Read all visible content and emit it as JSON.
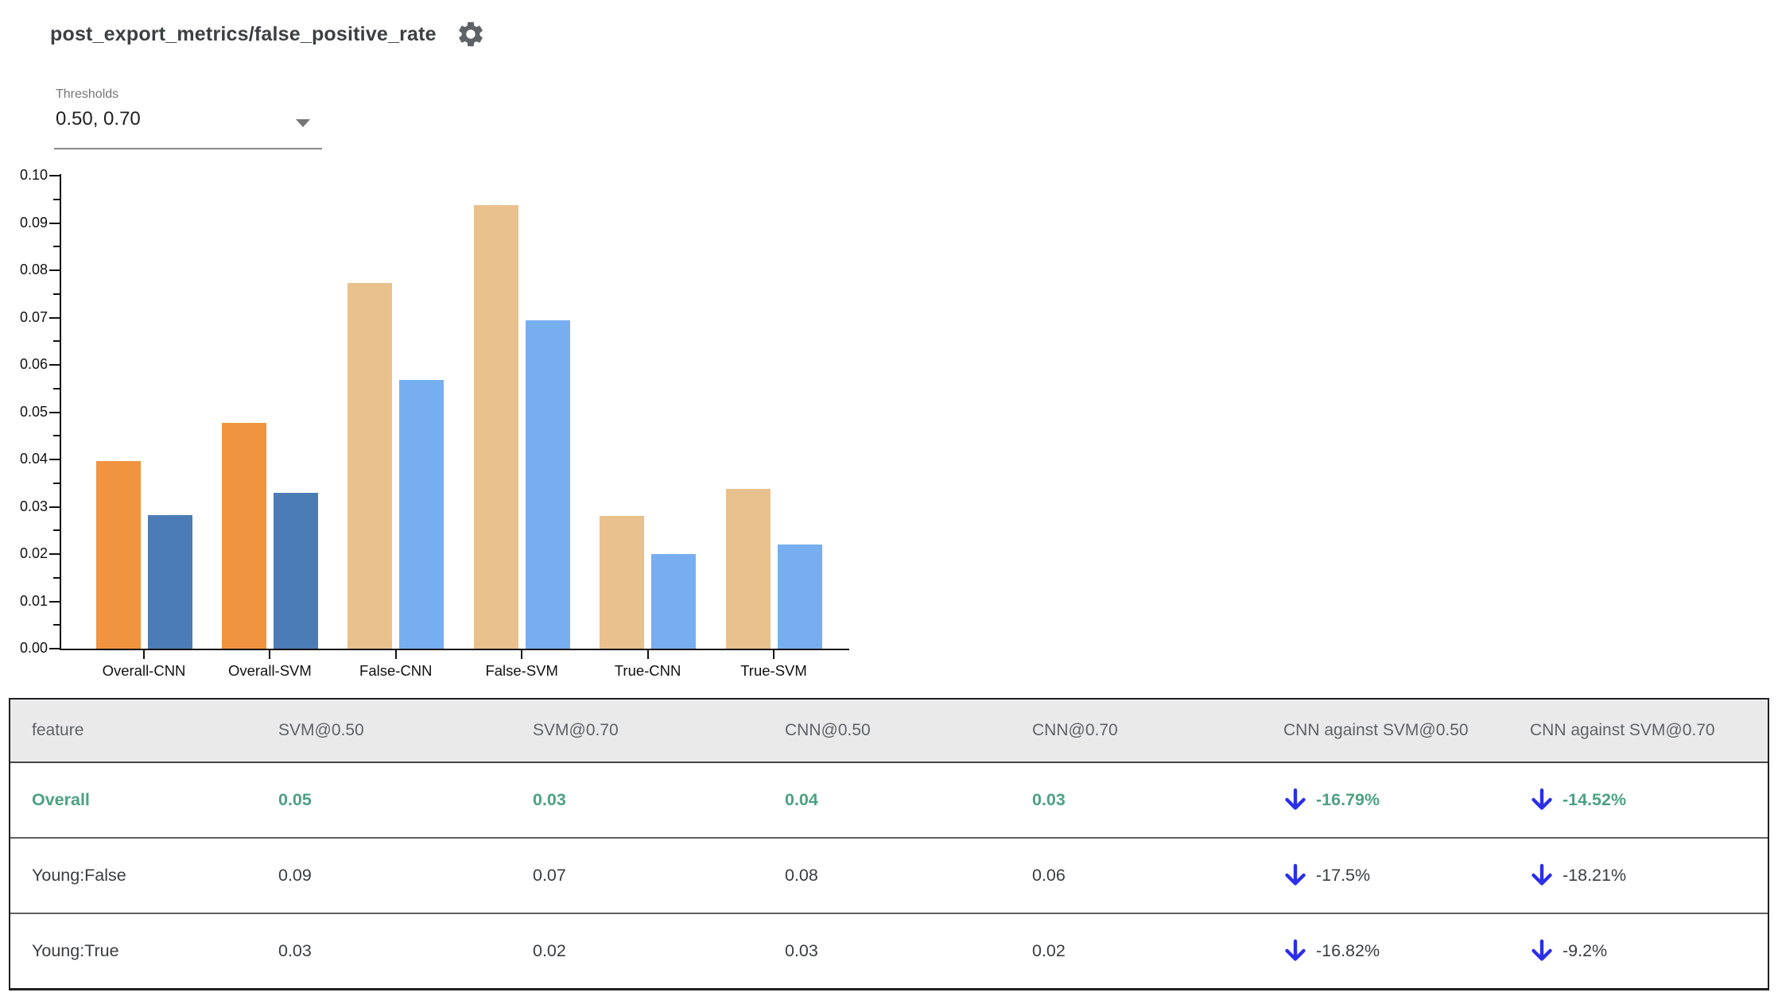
{
  "header": {
    "title": "post_export_metrics/false_positive_rate",
    "gear_icon": "settings-gear"
  },
  "thresholds": {
    "label": "Thresholds",
    "value": "0.50, 0.70",
    "caret_icon": "dropdown-caret"
  },
  "chart_data": {
    "type": "bar",
    "title": "",
    "xlabel": "",
    "ylabel": "",
    "ylim": [
      0,
      0.1
    ],
    "ytick_step": 0.01,
    "grid": false,
    "legend": "none",
    "categories": [
      "Overall-CNN",
      "Overall-SVM",
      "False-CNN",
      "False-SVM",
      "True-CNN",
      "True-SVM"
    ],
    "series": [
      {
        "name": "threshold 0.50",
        "values": [
          0.0397,
          0.0477,
          0.0773,
          0.0937,
          0.028,
          0.0337
        ]
      },
      {
        "name": "threshold 0.70",
        "values": [
          0.0282,
          0.033,
          0.0568,
          0.0694,
          0.02,
          0.022
        ]
      }
    ],
    "highlight_categories": [
      "Overall-CNN",
      "Overall-SVM"
    ],
    "colors": {
      "highlight": [
        "#F0943F",
        "#4C7CB5"
      ],
      "normal": [
        "#E9C18D",
        "#77AEEF"
      ]
    }
  },
  "table": {
    "columns": [
      "feature",
      "SVM@0.50",
      "SVM@0.70",
      "CNN@0.50",
      "CNN@0.70",
      "CNN against SVM@0.50",
      "CNN against SVM@0.70"
    ],
    "rows": [
      {
        "feature": "Overall",
        "values": [
          "0.05",
          "0.03",
          "0.04",
          "0.03"
        ],
        "deltas": [
          "-16.79%",
          "-14.52%"
        ],
        "highlight": true
      },
      {
        "feature": "Young:False",
        "values": [
          "0.09",
          "0.07",
          "0.08",
          "0.06"
        ],
        "deltas": [
          "-17.5%",
          "-18.21%"
        ],
        "highlight": false
      },
      {
        "feature": "Young:True",
        "values": [
          "0.03",
          "0.02",
          "0.03",
          "0.02"
        ],
        "deltas": [
          "-16.82%",
          "-9.2%"
        ],
        "highlight": false
      }
    ],
    "delta_direction": "down",
    "colors": {
      "highlight_text": "#4da183",
      "arrow_blue": "#2b2fe8",
      "header_bg": "#eaeaea"
    }
  }
}
